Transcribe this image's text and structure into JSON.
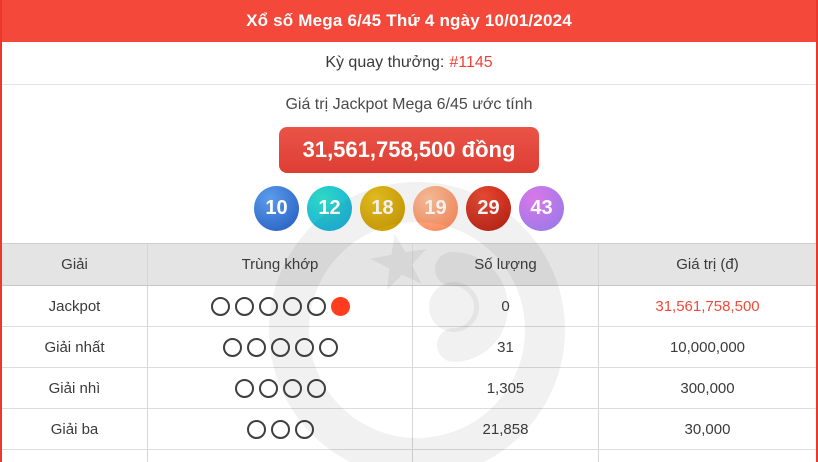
{
  "page": {
    "title": "Xổ số Mega 6/45 Thứ 4 ngày 10/01/2024",
    "draw_label": "Kỳ quay thưởng:",
    "draw_number": "#1145",
    "estimate_label": "Giá trị Jackpot Mega 6/45 ước tính",
    "jackpot_value": "31,561,758,500 đồng",
    "accent_red": "#f4483a",
    "value_red": "#f04a3b"
  },
  "balls": [
    {
      "number": "10",
      "color_top": "#5b9ceb",
      "color_bottom": "#2a63c5"
    },
    {
      "number": "12",
      "color_top": "#2fd8c3",
      "color_bottom": "#18b0dc"
    },
    {
      "number": "18",
      "color_top": "#ecc51d",
      "color_bottom": "#cc9b02"
    },
    {
      "number": "19",
      "color_top": "#ffc49c",
      "color_bottom": "#fe8a5c"
    },
    {
      "number": "29",
      "color_top": "#e74b32",
      "color_bottom": "#bd2114"
    },
    {
      "number": "43",
      "color_top": "#da78e8",
      "color_bottom": "#9a79e9"
    }
  ],
  "table": {
    "headers": [
      "Giải",
      "Trùng khớp",
      "Số lượng",
      "Giá trị (đ)"
    ],
    "rows": [
      {
        "prize": "Jackpot",
        "open_circles": 5,
        "filled_circles": 1,
        "count": "0",
        "value": "31,561,758,500",
        "value_red": true
      },
      {
        "prize": "Giải nhất",
        "open_circles": 5,
        "filled_circles": 0,
        "count": "31",
        "value": "10,000,000",
        "value_red": false
      },
      {
        "prize": "Giải nhì",
        "open_circles": 4,
        "filled_circles": 0,
        "count": "1,305",
        "value": "300,000",
        "value_red": false
      },
      {
        "prize": "Giải ba",
        "open_circles": 3,
        "filled_circles": 0,
        "count": "21,858",
        "value": "30,000",
        "value_red": false
      }
    ]
  }
}
